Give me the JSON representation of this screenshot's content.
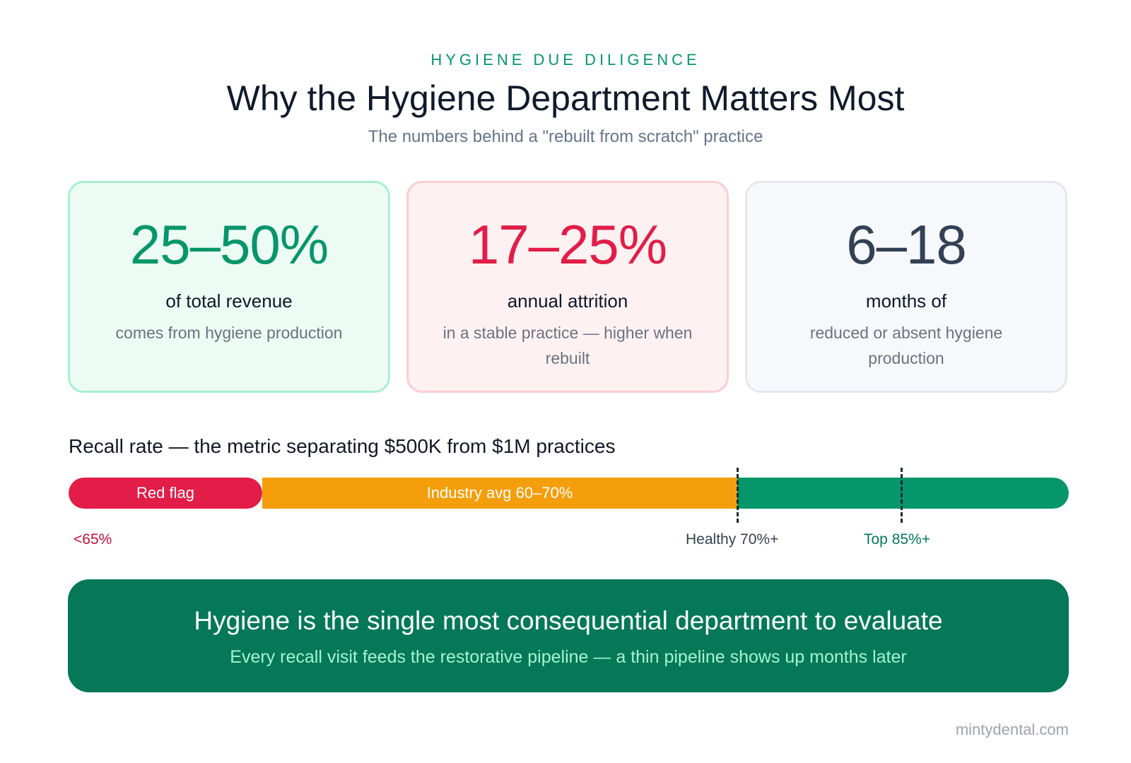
{
  "header": {
    "eyebrow": "HYGIENE DUE DILIGENCE",
    "title": "Why the Hygiene Department Matters Most",
    "subtitle": "The numbers behind a \"rebuilt from scratch\" practice"
  },
  "cards": [
    {
      "value": "25–50%",
      "label": "of total revenue",
      "description": "comes from hygiene production",
      "accent": "#059669"
    },
    {
      "value": "17–25%",
      "label": "annual attrition",
      "description": "in a stable practice — higher when rebuilt",
      "accent": "#e11d48"
    },
    {
      "value": "6–18",
      "label": "months of",
      "description": "reduced or absent hygiene production",
      "accent": "#334155"
    }
  ],
  "recall": {
    "title": "Recall rate — the metric separating $500K from $1M practices",
    "segments": [
      {
        "label": "Red flag",
        "color": "#e11d48"
      },
      {
        "label": "Industry avg 60–70%",
        "color": "#f59e0b"
      },
      {
        "label": "",
        "color": "#059669"
      }
    ],
    "ticks": {
      "low": "<65%",
      "healthy": "Healthy 70%+",
      "top": "Top 85%+"
    }
  },
  "banner": {
    "title": "Hygiene is the single most consequential department to evaluate",
    "subtitle": "Every recall visit feeds the restorative pipeline — a thin pipeline shows up months later"
  },
  "footer": {
    "brand": "mintydental.com"
  }
}
